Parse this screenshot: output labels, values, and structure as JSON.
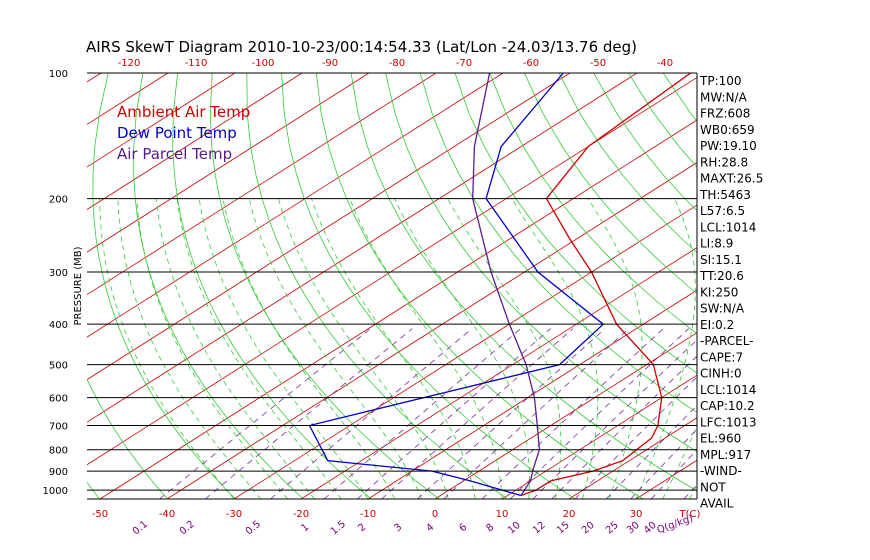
{
  "title": "AIRS SkewT Diagram 2010-10-23/00:14:54.33 (Lat/Lon -24.03/13.76 deg)",
  "chart_data": {
    "type": "line",
    "ylabel": "PRESSURE (MB)",
    "y_scale": "log",
    "ylim": [
      1050,
      100
    ],
    "pressure_ticks": [
      100,
      200,
      300,
      400,
      500,
      600,
      700,
      800,
      900,
      1000
    ],
    "isobars": [
      200,
      300,
      400,
      500,
      600,
      700,
      800,
      900,
      1000
    ],
    "top_temp_ticks": [
      -120,
      -110,
      -100,
      -90,
      -80,
      -70,
      -60,
      -50,
      -40
    ],
    "bottom_temp_ticks": [
      -50,
      -40,
      -30,
      -20,
      -10,
      0,
      10,
      20,
      30
    ],
    "bottom_unit": "T(C)",
    "mixing_ratio_labels": [
      "0.1",
      "0.2",
      "0.5",
      "1",
      "1.5",
      "2",
      "3",
      "4",
      "6",
      "8",
      "10",
      "12",
      "15",
      "20",
      "25",
      "30",
      "40"
    ],
    "mixing_unit": "Q(g/kg)",
    "legend": [
      {
        "label": "Ambient Air Temp",
        "color": "#cc0000"
      },
      {
        "label": "Dew Point Temp",
        "color": "#0000cc"
      },
      {
        "label": "Air Parcel Temp",
        "color": "#5a1a8a"
      }
    ],
    "series": [
      {
        "name": "Ambient Air Temp",
        "color": "#cc0000",
        "points": [
          [
            1030,
            12
          ],
          [
            1000,
            13
          ],
          [
            950,
            13
          ],
          [
            900,
            17
          ],
          [
            850,
            19
          ],
          [
            750,
            18
          ],
          [
            700,
            16
          ],
          [
            600,
            10
          ],
          [
            500,
            1
          ],
          [
            400,
            -14
          ],
          [
            300,
            -30
          ],
          [
            250,
            -41
          ],
          [
            200,
            -54
          ],
          [
            150,
            -60
          ],
          [
            100,
            -62
          ]
        ]
      },
      {
        "name": "Dew Point Temp",
        "color": "#0000cc",
        "points": [
          [
            1030,
            12
          ],
          [
            1000,
            8
          ],
          [
            950,
            1
          ],
          [
            900,
            -7
          ],
          [
            850,
            -25
          ],
          [
            700,
            -36
          ],
          [
            500,
            -13
          ],
          [
            400,
            -16
          ],
          [
            300,
            -38
          ],
          [
            200,
            -63
          ],
          [
            150,
            -73
          ],
          [
            100,
            -81
          ]
        ]
      },
      {
        "name": "Air Parcel Temp",
        "color": "#5a1a8a",
        "points": [
          [
            1030,
            12
          ],
          [
            950,
            10
          ],
          [
            900,
            8
          ],
          [
            800,
            4
          ],
          [
            700,
            -2
          ],
          [
            600,
            -9
          ],
          [
            500,
            -18
          ],
          [
            400,
            -30
          ],
          [
            300,
            -45
          ],
          [
            200,
            -65
          ],
          [
            150,
            -77
          ],
          [
            100,
            -92
          ]
        ]
      }
    ]
  },
  "indices": [
    "TP:100",
    "MW:N/A",
    "FRZ:608",
    "WB0:659",
    "PW:19.10",
    "RH:28.8",
    "MAXT:26.5",
    "TH:5463",
    "L57:6.5",
    "LCL:1014",
    "LI:8.9",
    "SI:15.1",
    "TT:20.6",
    "KI:250",
    "SW:N/A",
    "EI:0.2",
    "-PARCEL-",
    "CAPE:7",
    "CINH:0",
    "LCL:1014",
    "CAP:10.2",
    "LFC:1013",
    "EL:960",
    "MPL:917",
    "-WIND-",
    "NOT",
    "AVAIL"
  ]
}
